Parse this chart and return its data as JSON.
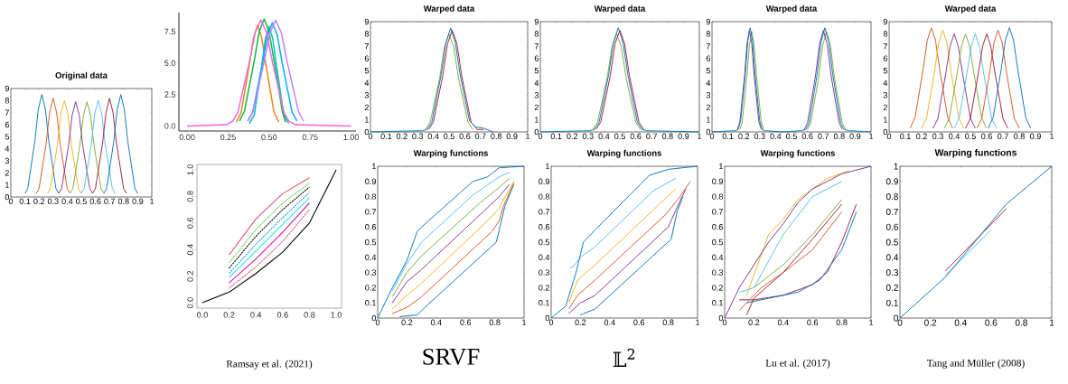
{
  "chart_data": [
    {
      "type": "line",
      "title": "Original data",
      "xlim": [
        0,
        1
      ],
      "ylim": [
        0,
        9
      ],
      "xticks": [
        0,
        0.1,
        0.2,
        0.3,
        0.4,
        0.5,
        0.6,
        0.7,
        0.8,
        0.9,
        1
      ],
      "yticks": [
        0,
        1,
        2,
        3,
        4,
        5,
        6,
        7,
        8,
        9
      ],
      "series": [
        {
          "color": "#0072bd",
          "x": [
            0.1,
            0.12,
            0.17,
            0.195,
            0.22,
            0.245,
            0.27,
            0.32,
            0.34
          ],
          "values": [
            0.3,
            0.7,
            4.6,
            7.3,
            8.5,
            7.3,
            4.6,
            0.7,
            0.3
          ]
        },
        {
          "color": "#d95319",
          "x": [
            0.18,
            0.2,
            0.25,
            0.275,
            0.3,
            0.325,
            0.35,
            0.4,
            0.42
          ],
          "values": [
            0.3,
            0.7,
            4.4,
            7.0,
            8.2,
            7.0,
            4.4,
            0.7,
            0.3
          ]
        },
        {
          "color": "#edb120",
          "x": [
            0.26,
            0.28,
            0.33,
            0.355,
            0.38,
            0.405,
            0.43,
            0.48,
            0.5
          ],
          "values": [
            0.3,
            0.7,
            4.3,
            6.9,
            8.0,
            6.9,
            4.3,
            0.7,
            0.3
          ]
        },
        {
          "color": "#7e2f8e",
          "x": [
            0.34,
            0.36,
            0.41,
            0.435,
            0.46,
            0.485,
            0.51,
            0.56,
            0.58
          ],
          "values": [
            0.3,
            0.7,
            4.3,
            6.8,
            7.9,
            6.8,
            4.3,
            0.7,
            0.3
          ]
        },
        {
          "color": "#77ac30",
          "x": [
            0.42,
            0.44,
            0.49,
            0.515,
            0.54,
            0.565,
            0.59,
            0.64,
            0.66
          ],
          "values": [
            0.3,
            0.7,
            4.3,
            6.8,
            7.9,
            6.8,
            4.3,
            0.7,
            0.3
          ]
        },
        {
          "color": "#4dbeee",
          "x": [
            0.5,
            0.52,
            0.57,
            0.595,
            0.62,
            0.645,
            0.67,
            0.72,
            0.74
          ],
          "values": [
            0.3,
            0.7,
            4.3,
            6.9,
            8.0,
            6.9,
            4.3,
            0.7,
            0.3
          ]
        },
        {
          "color": "#a2142f",
          "x": [
            0.58,
            0.6,
            0.65,
            0.675,
            0.7,
            0.725,
            0.75,
            0.8,
            0.82
          ],
          "values": [
            0.3,
            0.7,
            4.4,
            7.0,
            8.2,
            7.0,
            4.4,
            0.7,
            0.3
          ]
        },
        {
          "color": "#0072bd",
          "x": [
            0.66,
            0.68,
            0.73,
            0.755,
            0.78,
            0.805,
            0.83,
            0.88,
            0.9
          ],
          "values": [
            0.3,
            0.7,
            4.6,
            7.3,
            8.5,
            7.3,
            4.6,
            0.7,
            0.3
          ]
        }
      ]
    },
    {
      "type": "line",
      "xlim": [
        -0.05,
        1.03
      ],
      "ylim": [
        -0.4,
        9.0
      ],
      "xticks": [
        {
          "value": 0,
          "label": "0.00"
        },
        {
          "value": 0.25,
          "label": "0.25"
        },
        {
          "value": 0.5,
          "label": "0.50"
        },
        {
          "value": 0.75,
          "label": "0.75"
        },
        {
          "value": 1,
          "label": "1.00"
        }
      ],
      "yticks": [
        {
          "value": 0,
          "label": "0.0"
        },
        {
          "value": 2.5,
          "label": "2.5"
        },
        {
          "value": 5,
          "label": "5.0"
        },
        {
          "value": 7.5,
          "label": "7.5"
        }
      ],
      "series": [
        {
          "color": "#e68613",
          "x": [
            0.3,
            0.33,
            0.38,
            0.405,
            0.43,
            0.455,
            0.48,
            0.53,
            0.56
          ],
          "values": [
            0.3,
            1.1,
            4.9,
            7.0,
            8.0,
            7.0,
            4.9,
            1.1,
            0.3
          ]
        },
        {
          "color": "#00bfc4",
          "x": [
            0.38,
            0.41,
            0.455,
            0.477,
            0.5,
            0.523,
            0.545,
            0.59,
            0.62
          ],
          "values": [
            0.2,
            0.9,
            4.8,
            6.9,
            7.9,
            6.9,
            4.8,
            0.9,
            0.2
          ]
        },
        {
          "color": "#00a9ff",
          "x": [
            0.37,
            0.4,
            0.46,
            0.49,
            0.52,
            0.55,
            0.58,
            0.64,
            0.67
          ],
          "values": [
            0.4,
            1.1,
            5.0,
            7.2,
            8.2,
            7.2,
            5.0,
            1.1,
            0.4
          ]
        },
        {
          "color": "#00ba38",
          "x": [
            0.32,
            0.35,
            0.41,
            0.44,
            0.47,
            0.5,
            0.53,
            0.58,
            0.6
          ],
          "values": [
            0.4,
            1.2,
            5.2,
            7.5,
            8.5,
            7.5,
            5.2,
            1.2,
            0.3
          ]
        },
        {
          "color": "#c77cff",
          "x": [
            0.37,
            0.4,
            0.47,
            0.505,
            0.54,
            0.575,
            0.61,
            0.68,
            0.71
          ],
          "values": [
            0.4,
            1.1,
            5.1,
            7.4,
            8.4,
            7.4,
            5.1,
            1.1,
            0.4
          ]
        },
        {
          "color": "#f564e3",
          "x": [
            0,
            0.24,
            0.28,
            0.31,
            0.38,
            0.415,
            0.45,
            0.485,
            0.52,
            0.59,
            0.62,
            0.66,
            1
          ],
          "values": [
            0,
            0.1,
            0.4,
            1.1,
            5.1,
            7.4,
            8.4,
            7.4,
            5.1,
            1.1,
            0.4,
            0.1,
            0
          ]
        }
      ]
    },
    {
      "type": "line",
      "title": "Warped data",
      "xlim": [
        0,
        1
      ],
      "ylim": [
        0,
        9
      ],
      "xticks": [
        0,
        0.1,
        0.2,
        0.3,
        0.4,
        0.5,
        0.6,
        0.7,
        0.8,
        0.9,
        1
      ],
      "yticks": [
        0,
        1,
        2,
        3,
        4,
        5,
        6,
        7,
        8,
        9
      ],
      "series": [
        {
          "color": "#77ac30",
          "x": [
            0.35,
            0.38,
            0.44,
            0.47,
            0.5,
            0.53,
            0.56,
            0.62,
            0.65
          ],
          "values": [
            0.2,
            0.8,
            4.4,
            6.9,
            8.0,
            6.9,
            4.4,
            0.8,
            0.2
          ]
        },
        {
          "color": "#a2142f",
          "x": [
            0.37,
            0.4,
            0.46,
            0.49,
            0.52,
            0.55,
            0.58,
            0.64,
            0.68,
            0.72
          ],
          "values": [
            0.2,
            0.8,
            4.6,
            7.2,
            8.3,
            7.2,
            4.6,
            0.8,
            0.2,
            0.2
          ]
        },
        {
          "color": "#0072bd",
          "x": [
            0,
            0.33,
            0.36,
            0.39,
            0.45,
            0.48,
            0.51,
            0.54,
            0.57,
            0.63,
            0.67,
            0.72,
            0.78
          ],
          "values": [
            0,
            0.1,
            0.2,
            0.8,
            4.7,
            7.3,
            8.5,
            7.3,
            4.7,
            0.9,
            0.4,
            0.3,
            0
          ]
        }
      ]
    },
    {
      "type": "line",
      "title": "Warped data",
      "xlim": [
        0,
        1
      ],
      "ylim": [
        0,
        9
      ],
      "xticks": [
        0,
        0.1,
        0.2,
        0.3,
        0.4,
        0.5,
        0.6,
        0.7,
        0.8,
        0.9,
        1
      ],
      "yticks": [
        0,
        1,
        2,
        3,
        4,
        5,
        6,
        7,
        8,
        9
      ],
      "series": [
        {
          "color": "#77ac30",
          "x": [
            0.33,
            0.36,
            0.42,
            0.45,
            0.48,
            0.51,
            0.54,
            0.6,
            0.63
          ],
          "values": [
            0.2,
            0.8,
            4.4,
            6.9,
            8.0,
            6.9,
            4.4,
            0.8,
            0.2
          ]
        },
        {
          "color": "#a2142f",
          "x": [
            0.35,
            0.38,
            0.44,
            0.47,
            0.5,
            0.53,
            0.56,
            0.62,
            0.65
          ],
          "values": [
            0.2,
            0.8,
            4.6,
            7.2,
            8.3,
            7.2,
            4.6,
            0.8,
            0.2
          ]
        },
        {
          "color": "#0072bd",
          "x": [
            0,
            0.31,
            0.34,
            0.37,
            0.43,
            0.46,
            0.49,
            0.52,
            0.55,
            0.61,
            0.64,
            0.67,
            1
          ],
          "values": [
            0,
            0.1,
            0.2,
            0.8,
            4.7,
            7.3,
            8.5,
            7.3,
            4.7,
            0.8,
            0.2,
            0.1,
            0
          ]
        }
      ]
    },
    {
      "type": "line",
      "title": "Warped data",
      "xlim": [
        0,
        1
      ],
      "ylim": [
        0,
        9
      ],
      "xticks": [
        0,
        0.1,
        0.2,
        0.3,
        0.4,
        0.5,
        0.6,
        0.7,
        0.8,
        0.9,
        1
      ],
      "yticks": [
        0,
        1,
        2,
        3,
        4,
        5,
        6,
        7,
        8,
        9
      ],
      "series": [
        {
          "color": "#77ac30",
          "x": [
            0.175,
            0.19,
            0.22,
            0.235,
            0.25,
            0.265,
            0.28,
            0.31,
            0.325,
            0.45,
            0.6,
            0.62,
            0.67,
            0.695,
            0.72,
            0.745,
            0.77,
            0.82,
            0.84
          ],
          "values": [
            0.2,
            0.8,
            4.6,
            7.1,
            8.2,
            7.1,
            4.6,
            0.8,
            0.2,
            null,
            0.2,
            0.7,
            4.4,
            7.0,
            8.2,
            7.0,
            4.4,
            0.7,
            0.2
          ]
        },
        {
          "color": "#7e2f8e",
          "x": [
            0.16,
            0.175,
            0.205,
            0.22,
            0.235,
            0.25,
            0.265,
            0.295,
            0.31,
            0.45,
            0.58,
            0.6,
            0.65,
            0.675,
            0.7,
            0.725,
            0.75,
            0.8,
            0.82
          ],
          "values": [
            0.2,
            0.8,
            4.6,
            7.2,
            8.3,
            7.2,
            4.6,
            0.8,
            0.2,
            null,
            0.2,
            0.7,
            4.5,
            7.1,
            8.3,
            7.1,
            4.5,
            0.7,
            0.2
          ]
        },
        {
          "color": "#0072bd",
          "x": [
            0,
            0.15,
            0.165,
            0.18,
            0.21,
            0.225,
            0.24,
            0.255,
            0.27,
            0.3,
            0.315,
            0.33,
            0.45,
            0.56,
            0.59,
            0.61,
            0.66,
            0.685,
            0.71,
            0.735,
            0.76,
            0.81,
            0.83,
            0.86,
            1
          ],
          "values": [
            0,
            0.1,
            0.2,
            0.9,
            4.8,
            7.4,
            8.5,
            7.4,
            4.8,
            0.9,
            0.2,
            0.1,
            0,
            0.1,
            0.2,
            0.7,
            4.6,
            7.3,
            8.5,
            7.3,
            4.6,
            0.7,
            0.2,
            0.1,
            0
          ]
        }
      ]
    },
    {
      "type": "line",
      "title": "Warped data",
      "xlim": [
        0,
        1
      ],
      "ylim": [
        0,
        9
      ],
      "xticks": [
        0,
        0.1,
        0.2,
        0.3,
        0.4,
        0.5,
        0.6,
        0.7,
        0.8,
        0.9,
        1
      ],
      "yticks": [
        0,
        1,
        2,
        3,
        4,
        5,
        6,
        7,
        8,
        9
      ],
      "series": [
        {
          "color": "#d95319",
          "x": [
            0.13,
            0.16,
            0.21,
            0.235,
            0.26,
            0.285,
            0.31,
            0.36,
            0.39
          ],
          "values": [
            0.3,
            1.2,
            5.2,
            7.5,
            8.5,
            7.5,
            5.2,
            1.2,
            0.3
          ]
        },
        {
          "color": "#edb120",
          "x": [
            0.2,
            0.23,
            0.28,
            0.305,
            0.33,
            0.355,
            0.38,
            0.43,
            0.46
          ],
          "values": [
            0.3,
            1.1,
            5.0,
            7.3,
            8.3,
            7.3,
            5.0,
            1.1,
            0.3
          ]
        },
        {
          "color": "#7e2f8e",
          "x": [
            0.27,
            0.3,
            0.35,
            0.375,
            0.4,
            0.425,
            0.45,
            0.5,
            0.53
          ],
          "values": [
            0.3,
            1.1,
            4.9,
            7.0,
            8.0,
            7.0,
            4.9,
            1.1,
            0.3
          ]
        },
        {
          "color": "#77ac30",
          "x": [
            0.34,
            0.37,
            0.42,
            0.445,
            0.47,
            0.495,
            0.52,
            0.57,
            0.6
          ],
          "values": [
            0.3,
            1.1,
            4.9,
            7.0,
            8.0,
            7.0,
            4.9,
            1.1,
            0.3
          ]
        },
        {
          "color": "#4dbeee",
          "x": [
            0.4,
            0.43,
            0.48,
            0.505,
            0.53,
            0.555,
            0.58,
            0.63,
            0.66
          ],
          "values": [
            0.3,
            1.1,
            4.9,
            7.0,
            8.0,
            7.0,
            4.9,
            1.1,
            0.3
          ]
        },
        {
          "color": "#a2142f",
          "x": [
            0.47,
            0.5,
            0.55,
            0.575,
            0.6,
            0.625,
            0.65,
            0.7,
            0.73
          ],
          "values": [
            0.3,
            1.1,
            4.9,
            7.0,
            8.0,
            7.0,
            4.9,
            1.1,
            0.3
          ]
        },
        {
          "color": "#d95319",
          "x": [
            0.54,
            0.57,
            0.62,
            0.645,
            0.67,
            0.695,
            0.72,
            0.77,
            0.8
          ],
          "values": [
            0.3,
            1.1,
            5.0,
            7.3,
            8.3,
            7.3,
            5.0,
            1.1,
            0.3
          ]
        },
        {
          "color": "#0072bd",
          "x": [
            0.61,
            0.64,
            0.69,
            0.715,
            0.74,
            0.765,
            0.79,
            0.84,
            0.87
          ],
          "values": [
            0.3,
            1.2,
            5.2,
            7.5,
            8.5,
            7.5,
            5.2,
            1.2,
            0.3
          ]
        }
      ]
    },
    {
      "type": "line",
      "xlim": [
        -0.04,
        1.04
      ],
      "ylim": [
        -0.04,
        1.04
      ],
      "xticks": [
        {
          "value": 0,
          "label": "0.0"
        },
        {
          "value": 0.2,
          "label": "0.2"
        },
        {
          "value": 0.4,
          "label": "0.4"
        },
        {
          "value": 0.6,
          "label": "0.6"
        },
        {
          "value": 0.8,
          "label": "0.8"
        },
        {
          "value": 1,
          "label": "1.0"
        }
      ],
      "yticks": [
        {
          "value": 0,
          "label": "0.0"
        },
        {
          "value": 0.2,
          "label": "0.2"
        },
        {
          "value": 0.4,
          "label": "0.4"
        },
        {
          "value": 0.6,
          "label": "0.6"
        },
        {
          "value": 0.8,
          "label": "0.8"
        },
        {
          "value": 1,
          "label": "1.0"
        }
      ],
      "annotations": [
        "Ramsay et al. (2021)"
      ],
      "series": [
        {
          "color": "#df536b",
          "line_style": "solid",
          "x": [
            0.2,
            0.4,
            0.6,
            0.8
          ],
          "values": [
            0.36,
            0.63,
            0.82,
            0.94
          ]
        },
        {
          "color": "#61d04f",
          "line_style": "dotted",
          "x": [
            0.2,
            0.4,
            0.6,
            0.8
          ],
          "values": [
            0.3,
            0.55,
            0.75,
            0.9
          ]
        },
        {
          "color": "#000000",
          "line_style": "dashed",
          "x": [
            0.2,
            0.4,
            0.6,
            0.8
          ],
          "values": [
            0.26,
            0.5,
            0.7,
            0.87
          ]
        },
        {
          "color": "#2297e6",
          "line_style": "dashed",
          "x": [
            0.2,
            0.4,
            0.6,
            0.8
          ],
          "values": [
            0.22,
            0.44,
            0.64,
            0.83
          ]
        },
        {
          "color": "#28e2e5",
          "line_style": "solid",
          "x": [
            0.2,
            0.4,
            0.6,
            0.8
          ],
          "values": [
            0.19,
            0.39,
            0.59,
            0.79
          ]
        },
        {
          "color": "#cd0bbc",
          "line_style": "solid",
          "x": [
            0.2,
            0.4,
            0.6,
            0.8
          ],
          "values": [
            0.15,
            0.33,
            0.53,
            0.75
          ]
        },
        {
          "color": "#df536b",
          "line_style": "dashed",
          "x": [
            0.2,
            0.4,
            0.6,
            0.8
          ],
          "values": [
            0.11,
            0.27,
            0.46,
            0.7
          ]
        },
        {
          "color": "#000000",
          "line_style": "solid",
          "x": [
            0,
            0.2,
            0.4,
            0.6,
            0.8,
            1
          ],
          "values": [
            0,
            0.08,
            0.22,
            0.38,
            0.6,
            1
          ]
        }
      ]
    },
    {
      "type": "line",
      "title": "Warping functions",
      "xlim": [
        0,
        1
      ],
      "ylim": [
        0,
        1
      ],
      "xticks": [
        0,
        0.2,
        0.4,
        0.6,
        0.8,
        1
      ],
      "yticks": [
        0,
        0.1,
        0.2,
        0.3,
        0.4,
        0.5,
        0.6,
        0.7,
        0.8,
        0.9,
        1
      ],
      "annotations": [
        "SRVF"
      ],
      "series": [
        {
          "color": "#0072bd",
          "x": [
            0.15,
            0.27,
            0.3,
            0.81,
            0.84,
            0.87,
            0.93
          ],
          "values": [
            0.01,
            0.02,
            0.05,
            0.5,
            0.62,
            0.74,
            0.88
          ]
        },
        {
          "color": "#d95319",
          "x": [
            0.1,
            0.2,
            0.3,
            0.78,
            0.83,
            0.86,
            0.93
          ],
          "values": [
            0.03,
            0.07,
            0.14,
            0.57,
            0.64,
            0.74,
            0.89
          ]
        },
        {
          "color": "#edb120",
          "x": [
            0.1,
            0.2,
            0.3,
            0.75,
            0.83,
            0.86,
            0.93
          ],
          "values": [
            0.06,
            0.15,
            0.23,
            0.64,
            0.72,
            0.78,
            0.9
          ]
        },
        {
          "color": "#7e2f8e",
          "x": [
            0.1,
            0.2,
            0.3,
            0.72,
            0.83,
            0.9
          ],
          "values": [
            0.1,
            0.24,
            0.32,
            0.7,
            0.8,
            0.88
          ]
        },
        {
          "color": "#77ac30",
          "x": [
            0.1,
            0.2,
            0.3,
            0.7,
            0.83,
            0.9
          ],
          "values": [
            0.14,
            0.3,
            0.41,
            0.76,
            0.86,
            0.92
          ]
        },
        {
          "color": "#4dbeee",
          "x": [
            0.1,
            0.2,
            0.3,
            0.65,
            0.83,
            0.9
          ],
          "values": [
            0.18,
            0.36,
            0.5,
            0.81,
            0.93,
            0.96
          ]
        },
        {
          "color": "#0072bd",
          "x": [
            0,
            0.1,
            0.2,
            0.27,
            0.3,
            0.65,
            0.75,
            0.83,
            1
          ],
          "values": [
            0,
            0.2,
            0.38,
            0.57,
            0.6,
            0.9,
            0.93,
            0.99,
            1
          ]
        }
      ]
    },
    {
      "type": "line",
      "title": "Warping functions",
      "xlim": [
        0,
        1
      ],
      "ylim": [
        0,
        1
      ],
      "xticks": [
        0,
        0.2,
        0.4,
        0.6,
        0.8,
        1
      ],
      "yticks": [
        0,
        0.1,
        0.2,
        0.3,
        0.4,
        0.5,
        0.6,
        0.7,
        0.8,
        0.9,
        1
      ],
      "annotations": [
        "𝕃$^{2}$"
      ],
      "series": [
        {
          "color": "#0072bd",
          "x": [
            0.2,
            0.3,
            0.82,
            0.86,
            0.9
          ],
          "values": [
            0.02,
            0.06,
            0.52,
            0.7,
            0.8
          ]
        },
        {
          "color": "#7e2f8e",
          "x": [
            0.12,
            0.2,
            0.3,
            0.8,
            0.87,
            0.92
          ],
          "values": [
            0.03,
            0.1,
            0.15,
            0.6,
            0.75,
            0.85
          ]
        },
        {
          "color": "#d95319",
          "x": [
            0.12,
            0.18,
            0.3,
            0.78,
            0.88,
            0.95
          ],
          "values": [
            0.06,
            0.15,
            0.25,
            0.68,
            0.8,
            0.9
          ]
        },
        {
          "color": "#edb120",
          "x": [
            0.12,
            0.18,
            0.3,
            0.75,
            0.85
          ],
          "values": [
            0.1,
            0.25,
            0.35,
            0.76,
            0.85
          ]
        },
        {
          "color": "#4dbeee",
          "x": [
            0.13,
            0.16,
            0.2,
            0.3,
            0.7,
            0.85
          ],
          "values": [
            0.33,
            0.35,
            0.4,
            0.47,
            0.84,
            0.92
          ]
        },
        {
          "color": "#0072bd",
          "x": [
            0,
            0.1,
            0.17,
            0.22,
            0.3,
            0.67,
            0.8,
            1
          ],
          "values": [
            0,
            0.08,
            0.3,
            0.5,
            0.58,
            0.94,
            0.98,
            1
          ]
        }
      ]
    },
    {
      "type": "line",
      "title": "Warping functions",
      "xlim": [
        0,
        1
      ],
      "ylim": [
        0,
        1
      ],
      "xticks": [
        0,
        0.2,
        0.4,
        0.6,
        0.8,
        1
      ],
      "yticks": [
        0,
        0.1,
        0.2,
        0.3,
        0.4,
        0.5,
        0.6,
        0.7,
        0.8,
        0.9,
        1
      ],
      "annotations": [
        "Lu et al. (2017)"
      ],
      "series": [
        {
          "color": "#a2142f",
          "x": [
            0.1,
            0.2,
            0.4,
            0.6,
            0.7,
            0.8,
            0.9
          ],
          "values": [
            0.12,
            0.12,
            0.15,
            0.22,
            0.3,
            0.5,
            0.75
          ]
        },
        {
          "color": "#0072bd",
          "x": [
            0.15,
            0.3,
            0.5,
            0.65,
            0.8,
            0.9
          ],
          "values": [
            0.1,
            0.13,
            0.17,
            0.25,
            0.45,
            0.7
          ]
        },
        {
          "color": "#d95319",
          "x": [
            0.1,
            0.25,
            0.4,
            0.6,
            0.8
          ],
          "values": [
            0.05,
            0.2,
            0.3,
            0.45,
            0.7
          ]
        },
        {
          "color": "#77ac30",
          "x": [
            0.2,
            0.4,
            0.6,
            0.8
          ],
          "values": [
            0.2,
            0.35,
            0.55,
            0.78
          ]
        },
        {
          "color": "#a2142f",
          "x": [
            0.15,
            0.2,
            0.4,
            0.6,
            0.8
          ],
          "values": [
            0.02,
            0.13,
            0.3,
            0.52,
            0.75
          ]
        },
        {
          "color": "#4dbeee",
          "x": [
            0.1,
            0.2,
            0.4,
            0.6,
            0.8
          ],
          "values": [
            0.17,
            0.2,
            0.55,
            0.8,
            0.9
          ]
        },
        {
          "color": "#edb120",
          "x": [
            0.15,
            0.3,
            0.4,
            0.5,
            0.7,
            0.85
          ],
          "values": [
            0.15,
            0.55,
            0.65,
            0.78,
            0.92,
            0.97
          ]
        },
        {
          "color": "#7e2f8e",
          "x": [
            0,
            0.1,
            0.2,
            0.3,
            0.4,
            0.5,
            0.6,
            0.8,
            1
          ],
          "values": [
            0,
            0.2,
            0.35,
            0.5,
            0.62,
            0.76,
            0.85,
            0.95,
            1
          ]
        }
      ]
    },
    {
      "type": "line",
      "title": "Warping functions",
      "xlim": [
        0,
        1
      ],
      "ylim": [
        0,
        1
      ],
      "xticks": [
        0,
        0.2,
        0.4,
        0.6,
        0.8,
        1
      ],
      "yticks": [
        0,
        0.1,
        0.2,
        0.3,
        0.4,
        0.5,
        0.6,
        0.7,
        0.8,
        0.9,
        1
      ],
      "annotations": [
        "Tang and Müller (2008)"
      ],
      "series": [
        {
          "color": "#4dbeee",
          "x": [
            0.3,
            0.6
          ],
          "values": [
            0.28,
            0.58
          ]
        },
        {
          "color": "#a2142f",
          "x": [
            0.3,
            0.7
          ],
          "values": [
            0.31,
            0.72
          ]
        },
        {
          "color": "#0072bd",
          "x": [
            0,
            0.3,
            0.7,
            1
          ],
          "values": [
            0,
            0.27,
            0.75,
            1
          ]
        }
      ]
    }
  ]
}
